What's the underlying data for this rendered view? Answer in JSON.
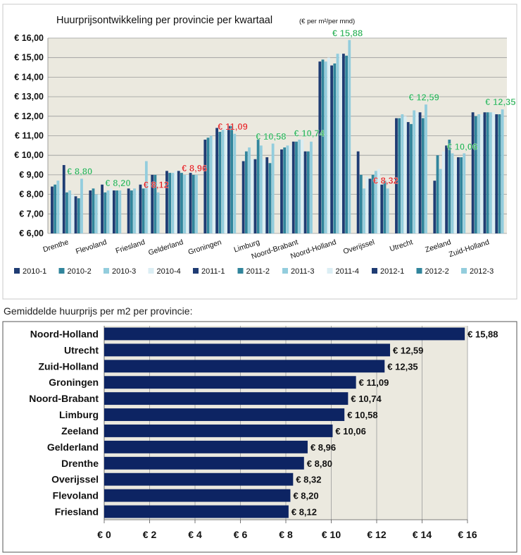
{
  "chart_data": [
    {
      "type": "bar",
      "title": "Huurprijsontwikkeling per provincie per kwartaal",
      "title_unit": "(€ per m²/per mnd)",
      "categories": [
        "Drenthe",
        "Flevoland",
        "Friesland",
        "Gelderland",
        "Groningen",
        "Limburg",
        "Noord-Brabant",
        "Noord-Holland",
        "Overijssel",
        "Utrecht",
        "Zeeland",
        "Zuid-Holland"
      ],
      "ylim": [
        6,
        16
      ],
      "yticks": [
        "€ 6,00",
        "€ 7,00",
        "€ 8,00",
        "€ 9,00",
        "€ 10,00",
        "€ 11,00",
        "€ 12,00",
        "€ 13,00",
        "€ 14,00",
        "€ 15,00",
        "€ 16,00"
      ],
      "legend_position": "bottom",
      "grid": true,
      "series": [
        {
          "name": "2010-1",
          "color": "#1f3c73",
          "values": [
            8.4,
            8.2,
            8.3,
            9.2,
            10.8,
            9.7,
            10.3,
            14.8,
            10.2,
            11.9,
            8.7,
            12.2
          ]
        },
        {
          "name": "2010-2",
          "color": "#31859c",
          "values": [
            8.5,
            8.3,
            8.2,
            9.1,
            10.9,
            10.2,
            10.4,
            14.9,
            9.0,
            11.9,
            10.0,
            12.0
          ]
        },
        {
          "name": "2010-3",
          "color": "#93cddd",
          "values": [
            8.7,
            8.0,
            8.3,
            9.1,
            11.0,
            10.4,
            10.5,
            14.8,
            8.3,
            12.1,
            9.3,
            12.1
          ]
        },
        {
          "name": "2010-4",
          "color": "#dbeef4",
          "values": [
            8.3,
            8.0,
            8.2,
            9.2,
            10.8,
            9.8,
            10.5,
            15.0,
            8.9,
            12.0,
            10.2,
            12.1
          ]
        },
        {
          "name": "2011-1",
          "color": "#1f3c73",
          "values": [
            9.5,
            8.5,
            8.5,
            9.2,
            11.4,
            9.8,
            10.7,
            14.6,
            8.8,
            11.7,
            10.5,
            12.2
          ]
        },
        {
          "name": "2011-2",
          "color": "#31859c",
          "values": [
            8.1,
            8.1,
            8.3,
            9.1,
            11.2,
            10.8,
            10.7,
            14.7,
            9.0,
            11.6,
            10.8,
            12.2
          ]
        },
        {
          "name": "2011-3",
          "color": "#93cddd",
          "values": [
            8.2,
            8.2,
            9.7,
            9.0,
            11.3,
            10.5,
            10.8,
            15.2,
            9.2,
            12.3,
            10.1,
            12.2
          ]
        },
        {
          "name": "2011-4",
          "color": "#dbeef4",
          "values": [
            8.0,
            8.3,
            8.5,
            9.0,
            11.4,
            9.8,
            10.8,
            15.2,
            9.3,
            12.2,
            9.8,
            12.2
          ]
        },
        {
          "name": "2012-1",
          "color": "#1f3c73",
          "values": [
            7.9,
            8.2,
            9.0,
            9.1,
            11.5,
            9.9,
            10.2,
            15.2,
            8.5,
            12.2,
            9.9,
            12.1
          ]
        },
        {
          "name": "2012-2",
          "color": "#31859c",
          "values": [
            7.8,
            8.2,
            9.0,
            9.0,
            11.5,
            9.6,
            10.2,
            15.1,
            8.7,
            11.9,
            9.9,
            12.1
          ]
        },
        {
          "name": "2012-3",
          "color": "#93cddd",
          "values": [
            8.8,
            8.2,
            8.1,
            9.0,
            11.1,
            10.6,
            10.7,
            15.9,
            8.3,
            12.6,
            10.1,
            12.35
          ]
        }
      ],
      "annotations": [
        {
          "category": "Drenthe",
          "text": "€ 8,80",
          "value": 8.8,
          "color": "#2fb35a"
        },
        {
          "category": "Flevoland",
          "text": "€ 8,20",
          "value": 8.2,
          "color": "#2fb35a"
        },
        {
          "category": "Friesland",
          "text": "€ 8,12",
          "value": 8.12,
          "color": "#e02020"
        },
        {
          "category": "Gelderland",
          "text": "€ 8,96",
          "value": 8.96,
          "color": "#e02020"
        },
        {
          "category": "Groningen",
          "text": "€ 11,09",
          "value": 11.09,
          "color": "#e02020"
        },
        {
          "category": "Limburg",
          "text": "€ 10,58",
          "value": 10.58,
          "color": "#2fb35a"
        },
        {
          "category": "Noord-Brabant",
          "text": "€ 10,74",
          "value": 10.74,
          "color": "#2fb35a"
        },
        {
          "category": "Noord-Holland",
          "text": "€ 15,88",
          "value": 15.88,
          "color": "#2fb35a"
        },
        {
          "category": "Overijssel",
          "text": "€ 8,32",
          "value": 8.32,
          "color": "#e02020"
        },
        {
          "category": "Utrecht",
          "text": "€ 12,59",
          "value": 12.59,
          "color": "#2fb35a"
        },
        {
          "category": "Zeeland",
          "text": "€ 10,06",
          "value": 10.06,
          "color": "#2fb35a"
        },
        {
          "category": "Zuid-Holland",
          "text": "€ 12,35",
          "value": 12.35,
          "color": "#2fb35a"
        }
      ]
    },
    {
      "type": "bar",
      "orientation": "horizontal",
      "title": "Gemiddelde huurprijs per m2 per provincie:",
      "categories": [
        "Noord-Holland",
        "Utrecht",
        "Zuid-Holland",
        "Groningen",
        "Noord-Brabant",
        "Limburg",
        "Zeeland",
        "Gelderland",
        "Drenthe",
        "Overijssel",
        "Flevoland",
        "Friesland"
      ],
      "values": [
        15.88,
        12.59,
        12.35,
        11.09,
        10.74,
        10.58,
        10.06,
        8.96,
        8.8,
        8.32,
        8.2,
        8.12
      ],
      "value_labels": [
        "€ 15,88",
        "€ 12,59",
        "€ 12,35",
        "€ 11,09",
        "€ 10,74",
        "€ 10,58",
        "€ 10,06",
        "€ 8,96",
        "€ 8,80",
        "€ 8,32",
        "€ 8,20",
        "€ 8,12"
      ],
      "xlim": [
        0,
        16
      ],
      "xticks": [
        "€ 0",
        "€ 2",
        "€ 4",
        "€ 6",
        "€ 8",
        "€ 10",
        "€ 12",
        "€ 14",
        "€ 16"
      ],
      "bar_color": "#0d2463",
      "grid": true
    }
  ]
}
